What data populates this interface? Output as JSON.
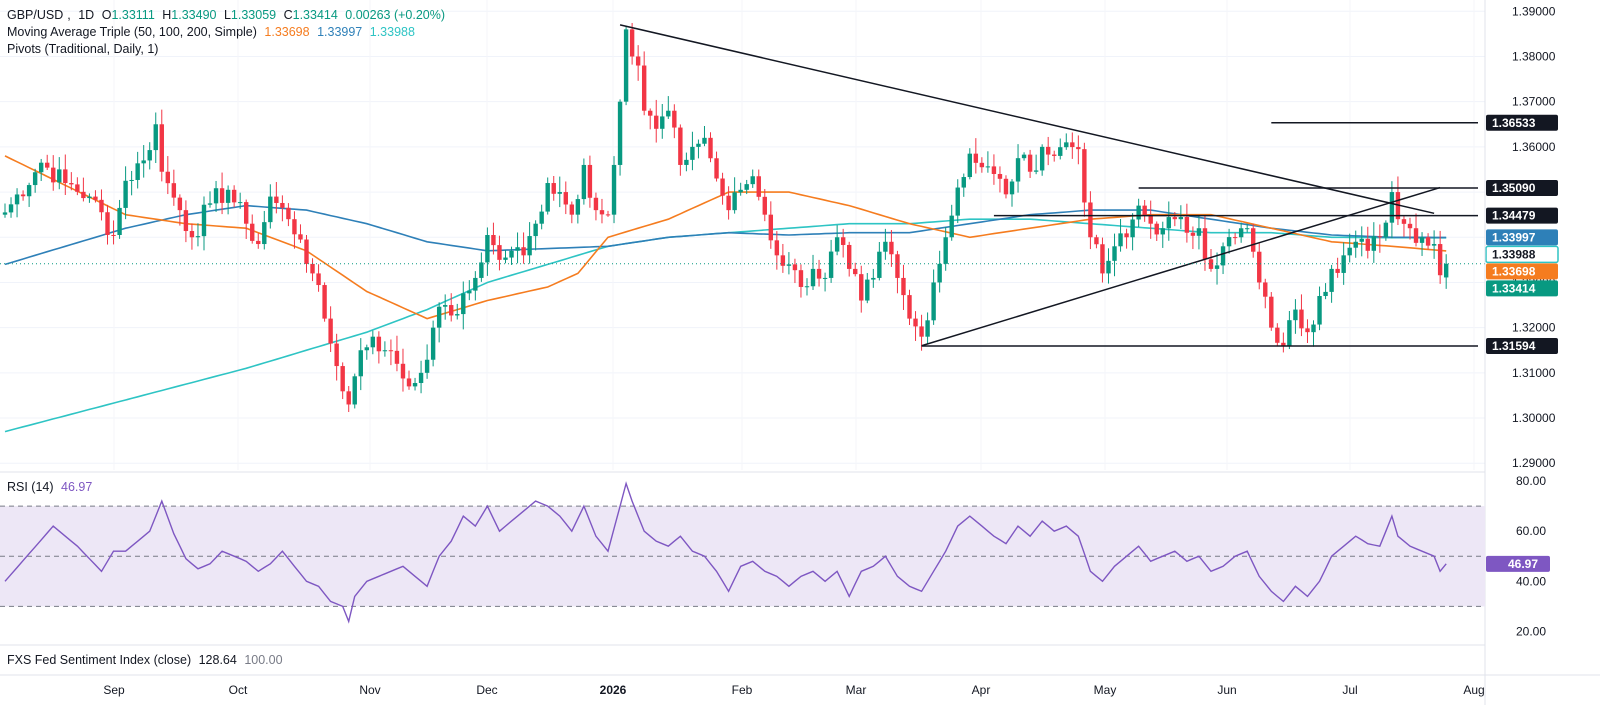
{
  "header": {
    "symbol": "GBP/USD",
    "timeframe": "1D",
    "open_label": "O",
    "open": "1.33111",
    "high_label": "H",
    "high": "1.33490",
    "low_label": "L",
    "low": "1.33059",
    "close_label": "C",
    "close": "1.33414",
    "change": "0.00263 (+0.20%)"
  },
  "indicators": {
    "ma_label": "Moving Average Triple (50, 100, 200, Simple)",
    "ma50": "1.33698",
    "ma100": "1.33997",
    "ma200": "1.33988",
    "pivots_label": "Pivots (Traditional, Daily, 1)",
    "rsi_label": "RSI (14)",
    "rsi_value": "46.97",
    "fxs_label": "FXS Fed Sentiment Index (close)",
    "fxs_value": "128.64",
    "fxs_value2": "100.00"
  },
  "colors": {
    "up": "#089981",
    "down": "#f23645",
    "ma50": "#f57c1f",
    "ma100": "#2e80b8",
    "ma200": "#2ec4c4",
    "rsi": "#7e57c2",
    "rsi_band": "#ede7f6",
    "trendline": "#131722"
  },
  "chart_data": [
    {
      "type": "candlestick",
      "title": "GBP/USD, 1D",
      "y_ticks": [
        "1.39000",
        "1.38000",
        "1.37000",
        "1.36000",
        "1.35000",
        "1.34000",
        "1.33000",
        "1.32000",
        "1.31000",
        "1.30000",
        "1.29000"
      ],
      "ylim": [
        1.2885,
        1.3925
      ],
      "x_ticks": [
        "Sep",
        "Oct",
        "Nov",
        "Dec",
        "2026",
        "Feb",
        "Mar",
        "Apr",
        "May",
        "Jun",
        "Jul",
        "Aug"
      ],
      "price_tags": [
        {
          "label": "1.36533",
          "value": 1.36533,
          "style": "level"
        },
        {
          "label": "1.35090",
          "value": 1.3509,
          "style": "level"
        },
        {
          "label": "1.34479",
          "value": 1.34479,
          "style": "level"
        },
        {
          "label": "1.33997",
          "value": 1.33997,
          "style": "ma100"
        },
        {
          "label": "1.33988",
          "value": 1.33988,
          "style": "ma200"
        },
        {
          "label": "1.33698",
          "value": 1.33698,
          "style": "ma50"
        },
        {
          "label": "1.33414",
          "value": 1.33414,
          "style": "last"
        },
        {
          "label": "1.31594",
          "value": 1.31594,
          "style": "level"
        }
      ],
      "horizontal_levels": [
        {
          "value": 1.36533,
          "from_day": 210,
          "to_day": 246
        },
        {
          "value": 1.3509,
          "from_day": 188,
          "to_day": 246
        },
        {
          "value": 1.34479,
          "from_day": 164,
          "to_day": 246
        },
        {
          "value": 1.31594,
          "from_day": 152,
          "to_day": 246
        }
      ],
      "trendlines": [
        {
          "from": [
            102,
            1.387
          ],
          "to": [
            237,
            1.3453
          ]
        },
        {
          "from": [
            152,
            1.316
          ],
          "to": [
            238,
            1.351
          ]
        }
      ],
      "last_price": 1.33414,
      "start_date": "2025-08-13",
      "seed_close": 1.345,
      "anchors": [
        [
          0,
          1.3455
        ],
        [
          6,
          1.3565
        ],
        [
          10,
          1.352
        ],
        [
          14,
          1.349
        ],
        [
          18,
          1.3405
        ],
        [
          20,
          1.3525
        ],
        [
          23,
          1.357
        ],
        [
          25,
          1.365
        ],
        [
          26,
          1.3545
        ],
        [
          29,
          1.346
        ],
        [
          31,
          1.34
        ],
        [
          34,
          1.3475
        ],
        [
          37,
          1.3505
        ],
        [
          40,
          1.343
        ],
        [
          42,
          1.3385
        ],
        [
          44,
          1.349
        ],
        [
          47,
          1.344
        ],
        [
          49,
          1.3395
        ],
        [
          51,
          1.332
        ],
        [
          53,
          1.322
        ],
        [
          55,
          1.3115
        ],
        [
          57,
          1.303
        ],
        [
          59,
          1.315
        ],
        [
          61,
          1.318
        ],
        [
          63,
          1.315
        ],
        [
          65,
          1.312
        ],
        [
          67,
          1.307
        ],
        [
          69,
          1.31
        ],
        [
          71,
          1.32
        ],
        [
          73,
          1.325
        ],
        [
          75,
          1.323
        ],
        [
          78,
          1.331
        ],
        [
          80,
          1.3405
        ],
        [
          82,
          1.335
        ],
        [
          84,
          1.337
        ],
        [
          86,
          1.336
        ],
        [
          88,
          1.343
        ],
        [
          90,
          1.352
        ],
        [
          92,
          1.35
        ],
        [
          94,
          1.345
        ],
        [
          96,
          1.356
        ],
        [
          98,
          1.346
        ],
        [
          100,
          1.345
        ],
        [
          101,
          1.356
        ],
        [
          102,
          1.37
        ],
        [
          103,
          1.386
        ],
        [
          104,
          1.38
        ],
        [
          105,
          1.378
        ],
        [
          106,
          1.368
        ],
        [
          108,
          1.364
        ],
        [
          110,
          1.368
        ],
        [
          112,
          1.356
        ],
        [
          114,
          1.36
        ],
        [
          116,
          1.362
        ],
        [
          118,
          1.353
        ],
        [
          120,
          1.346
        ],
        [
          122,
          1.3505
        ],
        [
          124,
          1.3535
        ],
        [
          126,
          1.345
        ],
        [
          128,
          1.336
        ],
        [
          130,
          1.334
        ],
        [
          132,
          1.329
        ],
        [
          134,
          1.333
        ],
        [
          136,
          1.331
        ],
        [
          138,
          1.34
        ],
        [
          140,
          1.333
        ],
        [
          142,
          1.326
        ],
        [
          144,
          1.331
        ],
        [
          146,
          1.339
        ],
        [
          148,
          1.331
        ],
        [
          150,
          1.322
        ],
        [
          152,
          1.318
        ],
        [
          154,
          1.33
        ],
        [
          156,
          1.34
        ],
        [
          158,
          1.351
        ],
        [
          160,
          1.3585
        ],
        [
          162,
          1.3555
        ],
        [
          164,
          1.354
        ],
        [
          166,
          1.3495
        ],
        [
          168,
          1.3575
        ],
        [
          170,
          1.3545
        ],
        [
          172,
          1.36
        ],
        [
          174,
          1.358
        ],
        [
          176,
          1.361
        ],
        [
          178,
          1.3595
        ],
        [
          180,
          1.34
        ],
        [
          182,
          1.332
        ],
        [
          184,
          1.338
        ],
        [
          186,
          1.34
        ],
        [
          188,
          1.347
        ],
        [
          190,
          1.343
        ],
        [
          192,
          1.342
        ],
        [
          194,
          1.344
        ],
        [
          196,
          1.341
        ],
        [
          198,
          1.342
        ],
        [
          200,
          1.333
        ],
        [
          202,
          1.338
        ],
        [
          204,
          1.34
        ],
        [
          206,
          1.342
        ],
        [
          208,
          1.33
        ],
        [
          210,
          1.32
        ],
        [
          212,
          1.316
        ],
        [
          214,
          1.324
        ],
        [
          216,
          1.319
        ],
        [
          218,
          1.327
        ],
        [
          220,
          1.333
        ],
        [
          222,
          1.336
        ],
        [
          224,
          1.339
        ],
        [
          226,
          1.337
        ],
        [
          228,
          1.34
        ],
        [
          230,
          1.35
        ],
        [
          231,
          1.344
        ],
        [
          233,
          1.342
        ],
        [
          235,
          1.34
        ],
        [
          237,
          1.3385
        ],
        [
          238,
          1.3316
        ],
        [
          239,
          1.3341
        ]
      ],
      "ma_anchors": {
        "ma50": [
          [
            0,
            1.358
          ],
          [
            20,
            1.345
          ],
          [
            30,
            1.343
          ],
          [
            40,
            1.342
          ],
          [
            50,
            1.337
          ],
          [
            60,
            1.328
          ],
          [
            70,
            1.322
          ],
          [
            80,
            1.326
          ],
          [
            90,
            1.329
          ],
          [
            95,
            1.332
          ],
          [
            100,
            1.34
          ],
          [
            110,
            1.344
          ],
          [
            120,
            1.35
          ],
          [
            130,
            1.35
          ],
          [
            140,
            1.347
          ],
          [
            150,
            1.343
          ],
          [
            160,
            1.34
          ],
          [
            170,
            1.342
          ],
          [
            180,
            1.344
          ],
          [
            190,
            1.345
          ],
          [
            200,
            1.345
          ],
          [
            210,
            1.342
          ],
          [
            220,
            1.339
          ],
          [
            230,
            1.338
          ],
          [
            239,
            1.33698
          ]
        ],
        "ma100": [
          [
            0,
            1.334
          ],
          [
            20,
            1.342
          ],
          [
            30,
            1.345
          ],
          [
            40,
            1.347
          ],
          [
            50,
            1.346
          ],
          [
            60,
            1.343
          ],
          [
            70,
            1.339
          ],
          [
            80,
            1.337
          ],
          [
            90,
            1.3375
          ],
          [
            100,
            1.338
          ],
          [
            110,
            1.34
          ],
          [
            120,
            1.341
          ],
          [
            130,
            1.3405
          ],
          [
            140,
            1.341
          ],
          [
            150,
            1.341
          ],
          [
            160,
            1.343
          ],
          [
            170,
            1.345
          ],
          [
            180,
            1.346
          ],
          [
            190,
            1.346
          ],
          [
            200,
            1.344
          ],
          [
            210,
            1.342
          ],
          [
            220,
            1.3405
          ],
          [
            230,
            1.34
          ],
          [
            239,
            1.33997
          ]
        ],
        "ma200": [
          [
            0,
            1.297
          ],
          [
            20,
            1.304
          ],
          [
            40,
            1.311
          ],
          [
            60,
            1.319
          ],
          [
            70,
            1.324
          ],
          [
            80,
            1.33
          ],
          [
            90,
            1.334
          ],
          [
            100,
            1.338
          ],
          [
            110,
            1.34
          ],
          [
            120,
            1.341
          ],
          [
            130,
            1.342
          ],
          [
            140,
            1.343
          ],
          [
            150,
            1.343
          ],
          [
            160,
            1.344
          ],
          [
            170,
            1.344
          ],
          [
            180,
            1.343
          ],
          [
            190,
            1.342
          ],
          [
            200,
            1.341
          ],
          [
            210,
            1.341
          ],
          [
            220,
            1.34
          ],
          [
            230,
            1.3399
          ],
          [
            239,
            1.33988
          ]
        ]
      }
    },
    {
      "type": "line",
      "title": "RSI (14)",
      "y_ticks": [
        "80.00",
        "60.00",
        "40.00",
        "20.00"
      ],
      "ylim": [
        15,
        82
      ],
      "band": [
        30,
        70
      ],
      "midline": 50,
      "last_value": 46.97,
      "anchors": [
        [
          0,
          40
        ],
        [
          4,
          51
        ],
        [
          8,
          62
        ],
        [
          12,
          54
        ],
        [
          16,
          44
        ],
        [
          18,
          52
        ],
        [
          20,
          52
        ],
        [
          24,
          60
        ],
        [
          26,
          72
        ],
        [
          28,
          59
        ],
        [
          30,
          49
        ],
        [
          32,
          45
        ],
        [
          34,
          47
        ],
        [
          36,
          52
        ],
        [
          40,
          48
        ],
        [
          42,
          44
        ],
        [
          44,
          47
        ],
        [
          46,
          52
        ],
        [
          48,
          46
        ],
        [
          50,
          40
        ],
        [
          52,
          38
        ],
        [
          54,
          32
        ],
        [
          56,
          30
        ],
        [
          57,
          24
        ],
        [
          58,
          34
        ],
        [
          60,
          40
        ],
        [
          62,
          42
        ],
        [
          64,
          44
        ],
        [
          66,
          46
        ],
        [
          68,
          42
        ],
        [
          70,
          38
        ],
        [
          72,
          50
        ],
        [
          74,
          56
        ],
        [
          76,
          66
        ],
        [
          78,
          62
        ],
        [
          80,
          70
        ],
        [
          82,
          60
        ],
        [
          84,
          64
        ],
        [
          86,
          68
        ],
        [
          88,
          72
        ],
        [
          90,
          70
        ],
        [
          92,
          66
        ],
        [
          94,
          60
        ],
        [
          96,
          70
        ],
        [
          98,
          58
        ],
        [
          100,
          52
        ],
        [
          102,
          70
        ],
        [
          103,
          79
        ],
        [
          104,
          72
        ],
        [
          106,
          60
        ],
        [
          108,
          56
        ],
        [
          110,
          54
        ],
        [
          112,
          58
        ],
        [
          114,
          52
        ],
        [
          116,
          50
        ],
        [
          118,
          44
        ],
        [
          120,
          36
        ],
        [
          122,
          46
        ],
        [
          124,
          48
        ],
        [
          126,
          44
        ],
        [
          128,
          42
        ],
        [
          130,
          38
        ],
        [
          132,
          42
        ],
        [
          134,
          44
        ],
        [
          136,
          40
        ],
        [
          138,
          44
        ],
        [
          140,
          34
        ],
        [
          142,
          44
        ],
        [
          144,
          46
        ],
        [
          146,
          50
        ],
        [
          148,
          42
        ],
        [
          150,
          38
        ],
        [
          152,
          36
        ],
        [
          154,
          44
        ],
        [
          156,
          52
        ],
        [
          158,
          62
        ],
        [
          160,
          66
        ],
        [
          162,
          62
        ],
        [
          164,
          58
        ],
        [
          166,
          55
        ],
        [
          168,
          62
        ],
        [
          170,
          58
        ],
        [
          172,
          64
        ],
        [
          174,
          60
        ],
        [
          176,
          62
        ],
        [
          178,
          58
        ],
        [
          180,
          44
        ],
        [
          182,
          40
        ],
        [
          184,
          46
        ],
        [
          186,
          50
        ],
        [
          188,
          54
        ],
        [
          190,
          48
        ],
        [
          192,
          50
        ],
        [
          194,
          52
        ],
        [
          196,
          48
        ],
        [
          198,
          50
        ],
        [
          200,
          44
        ],
        [
          202,
          46
        ],
        [
          204,
          50
        ],
        [
          206,
          52
        ],
        [
          208,
          42
        ],
        [
          210,
          36
        ],
        [
          212,
          32
        ],
        [
          214,
          38
        ],
        [
          216,
          34
        ],
        [
          218,
          40
        ],
        [
          220,
          50
        ],
        [
          222,
          54
        ],
        [
          224,
          58
        ],
        [
          226,
          55
        ],
        [
          228,
          54
        ],
        [
          230,
          66
        ],
        [
          231,
          58
        ],
        [
          233,
          54
        ],
        [
          235,
          52
        ],
        [
          237,
          50
        ],
        [
          238,
          44
        ],
        [
          239,
          46.97
        ]
      ]
    },
    {
      "type": "line",
      "title": "FXS Fed Sentiment Index (close)",
      "values_shown": {
        "close": 128.64,
        "base": 100.0
      }
    }
  ]
}
